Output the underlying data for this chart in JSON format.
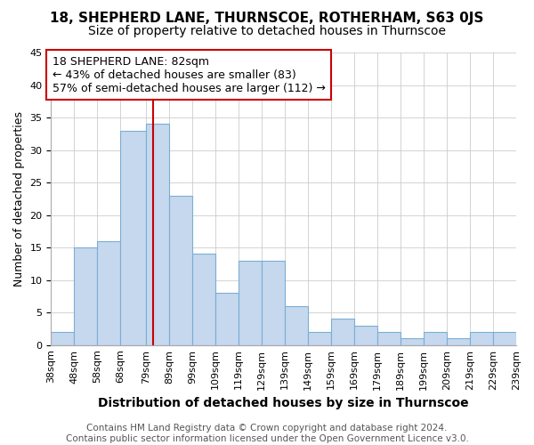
{
  "title": "18, SHEPHERD LANE, THURNSCOE, ROTHERHAM, S63 0JS",
  "subtitle": "Size of property relative to detached houses in Thurnscoe",
  "xlabel": "Distribution of detached houses by size in Thurnscoe",
  "ylabel": "Number of detached properties",
  "bin_edges": [
    38,
    48,
    58,
    68,
    79,
    89,
    99,
    109,
    119,
    129,
    139,
    149,
    159,
    169,
    179,
    189,
    199,
    209,
    219,
    229,
    239
  ],
  "bar_heights": [
    2,
    15,
    16,
    33,
    34,
    23,
    14,
    8,
    13,
    13,
    6,
    2,
    4,
    3,
    2,
    1,
    2,
    1,
    2,
    2
  ],
  "bar_color": "#c5d8ee",
  "bar_edge_color": "#7baed4",
  "property_line_x": 82,
  "property_line_color": "#cc0000",
  "annotation_text": "18 SHEPHERD LANE: 82sqm\n← 43% of detached houses are smaller (83)\n57% of semi-detached houses are larger (112) →",
  "annotation_box_facecolor": "#ffffff",
  "annotation_box_edgecolor": "#cc0000",
  "ylim": [
    0,
    45
  ],
  "yticks": [
    0,
    5,
    10,
    15,
    20,
    25,
    30,
    35,
    40,
    45
  ],
  "grid_color": "#cccccc",
  "background_color": "#ffffff",
  "plot_bg_color": "#ffffff",
  "footer_text": "Contains HM Land Registry data © Crown copyright and database right 2024.\nContains public sector information licensed under the Open Government Licence v3.0.",
  "title_fontsize": 11,
  "subtitle_fontsize": 10,
  "xlabel_fontsize": 10,
  "ylabel_fontsize": 9,
  "tick_fontsize": 8,
  "annotation_fontsize": 9,
  "footer_fontsize": 7.5
}
